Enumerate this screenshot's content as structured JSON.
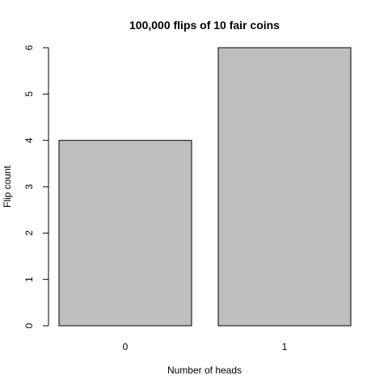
{
  "chart_data": {
    "type": "bar",
    "title": "100,000 flips of 10 fair coins",
    "xlabel": "Number of heads",
    "ylabel": "Flip count",
    "categories": [
      "0",
      "1"
    ],
    "values": [
      4,
      6
    ],
    "ylim": [
      0,
      6
    ],
    "yticks": [
      0,
      1,
      2,
      3,
      4,
      5,
      6
    ],
    "bar_color": "#bebebe",
    "grid": false
  }
}
